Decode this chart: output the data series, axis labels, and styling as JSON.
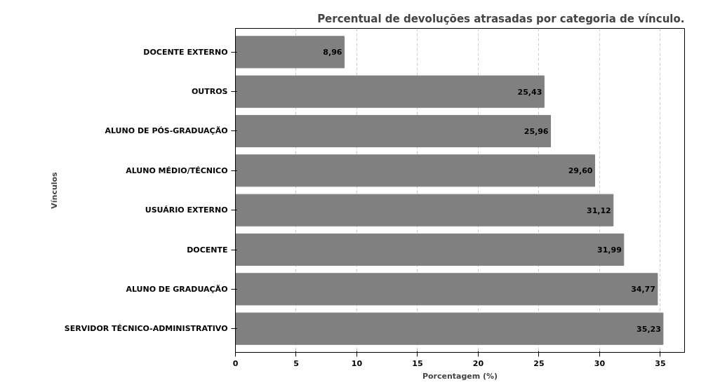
{
  "chart_data": {
    "type": "bar",
    "orientation": "horizontal",
    "title": "Percentual de devoluções atrasadas por categoria de vínculo.",
    "xlabel": "Porcentagem (%)",
    "ylabel": "Vínculos",
    "categories": [
      "DOCENTE EXTERNO",
      "OUTROS",
      "ALUNO DE PÓS-GRADUAÇÃO",
      "ALUNO MÉDIO/TÉCNICO",
      "USUÁRIO EXTERNO",
      "DOCENTE",
      "ALUNO DE GRADUAÇÃO",
      "SERVIDOR TÉCNICO-ADMINISTRATIVO"
    ],
    "values": [
      8.96,
      25.43,
      25.96,
      29.6,
      31.12,
      31.99,
      34.77,
      35.23
    ],
    "value_labels": [
      "8,96",
      "25,43",
      "25,96",
      "29,60",
      "31,12",
      "31,99",
      "34,77",
      "35,23"
    ],
    "color": "#808080",
    "xlim": [
      0,
      37
    ],
    "xticks": [
      0,
      5,
      10,
      15,
      20,
      25,
      30,
      35
    ],
    "grid": "x"
  }
}
